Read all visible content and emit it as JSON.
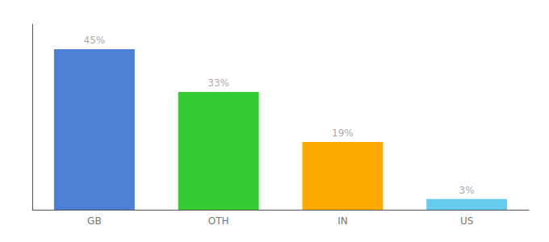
{
  "chart_data": {
    "type": "bar",
    "categories": [
      "GB",
      "OTH",
      "IN",
      "US"
    ],
    "values": [
      45,
      33,
      19,
      3
    ],
    "value_labels": [
      "45%",
      "33%",
      "19%",
      "3%"
    ],
    "colors": [
      "#4d7fd4",
      "#33cc33",
      "#ffaa00",
      "#66ccee"
    ],
    "ylim": [
      0,
      52
    ],
    "data_labels": true,
    "tick_labels": "x",
    "grid": false
  }
}
